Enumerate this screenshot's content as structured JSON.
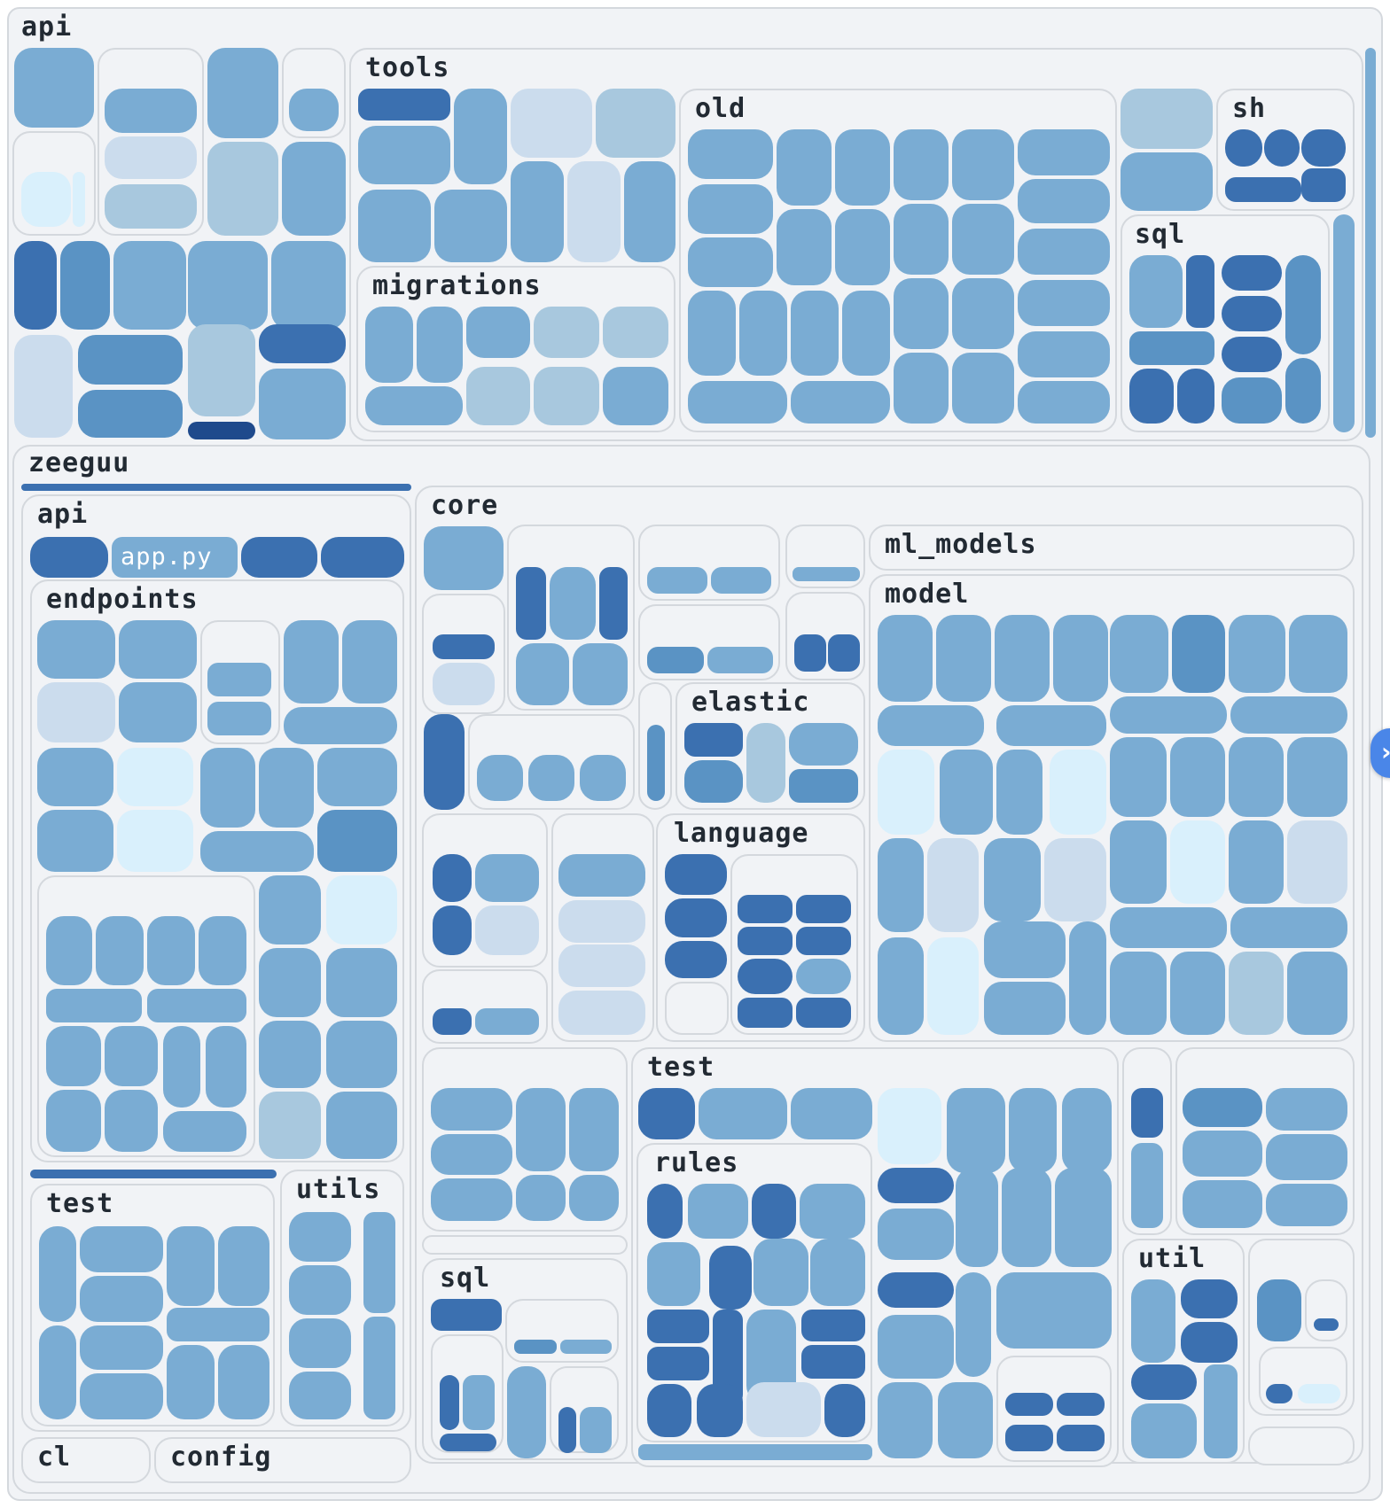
{
  "colors": {
    "c1": "#1f4a8c",
    "c2": "#3b70b0",
    "c3": "#5a93c4",
    "c4": "#7aacd3",
    "c5": "#a8c8de",
    "c6": "#cbdced",
    "c7": "#d9f0fc",
    "group_bg": "#f1f3f6",
    "group_border": "#d4d8dd",
    "handle": "#4a86e8"
  },
  "labels": {
    "api_top": "api",
    "tools": "tools",
    "migrations": "migrations",
    "old": "old",
    "sh": "sh",
    "sql_tools": "sql",
    "zeeguu": "zeeguu",
    "api_z": "api",
    "app_py": "app.py",
    "endpoints": "endpoints",
    "test_api": "test",
    "utils": "utils",
    "cl": "cl",
    "config": "config",
    "core": "core",
    "ml_models": "ml_models",
    "model": "model",
    "elastic": "elastic",
    "language": "language",
    "sql_core": "sql",
    "test_core": "test",
    "rules": "rules",
    "util": "util"
  },
  "sidebar_toggle_icon": "chevron-right-icon",
  "sidebar_toggle_glyph": "›"
}
